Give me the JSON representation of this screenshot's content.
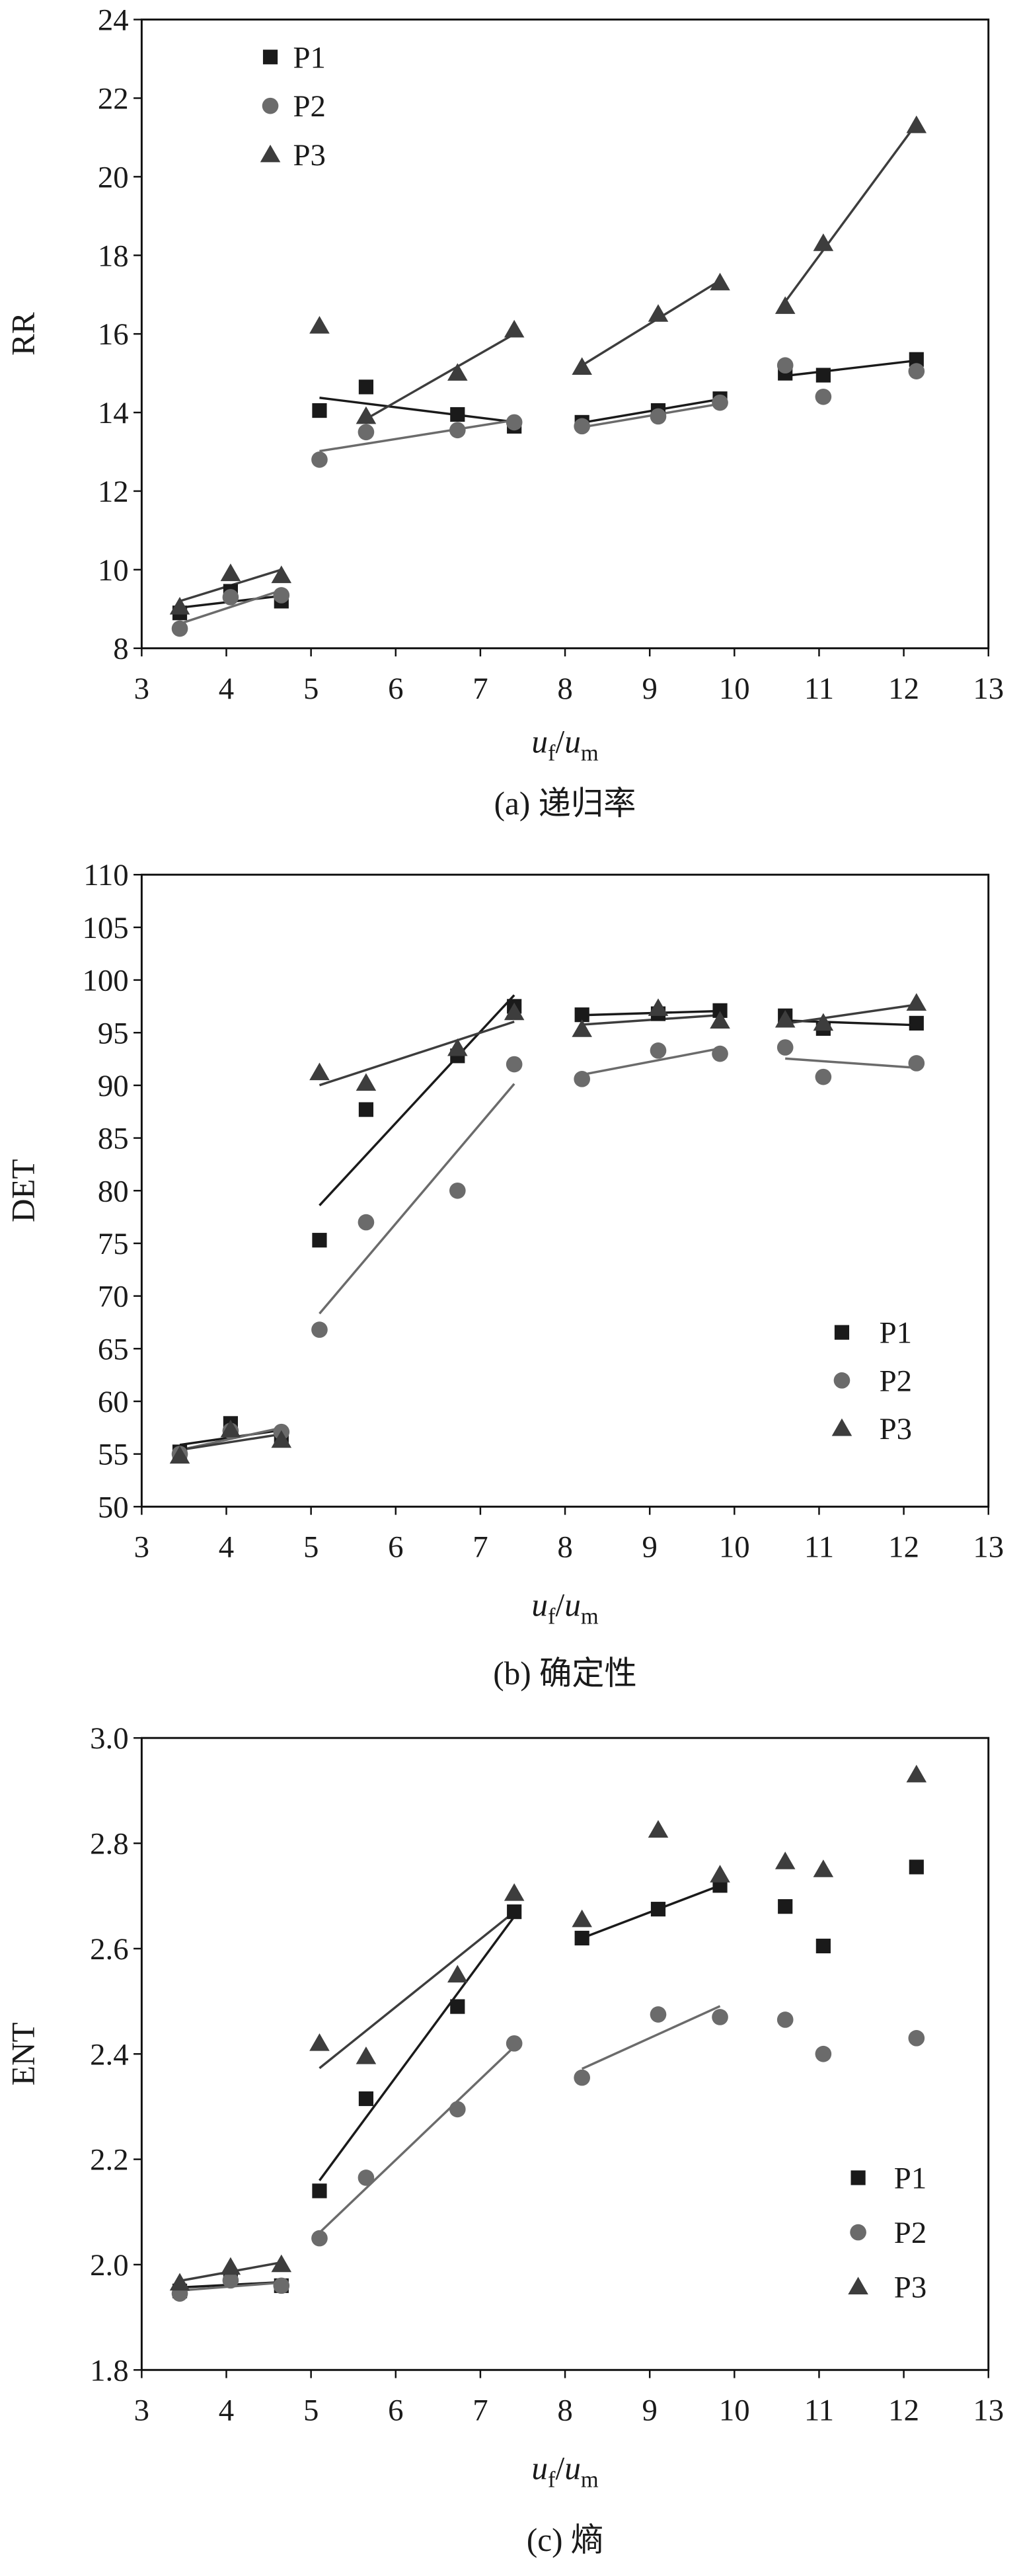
{
  "chart_data": [
    {
      "type": "scatter",
      "caption": "(a) 递归率",
      "ylabel": "RR",
      "xlabel": {
        "u1": "u",
        "sub1": "f",
        "slash": "/",
        "u2": "u",
        "sub2": "m"
      },
      "xlim": [
        3,
        13
      ],
      "ylim": [
        8,
        24
      ],
      "xticks": [
        "3",
        "4",
        "5",
        "6",
        "7",
        "8",
        "9",
        "10",
        "11",
        "12",
        "13"
      ],
      "yticks": [
        "8",
        "10",
        "12",
        "14",
        "16",
        "18",
        "20",
        "22",
        "24"
      ],
      "legend": "top-left",
      "x": [
        3.45,
        4.05,
        4.65,
        5.1,
        5.65,
        6.73,
        7.4,
        8.2,
        9.1,
        9.83,
        10.6,
        11.05,
        12.15
      ],
      "series": [
        {
          "name": "P1",
          "marker": "square",
          "color": "#1a1a1a",
          "values": [
            8.9,
            9.45,
            9.2,
            14.05,
            14.65,
            13.95,
            13.65,
            13.75,
            14.05,
            14.35,
            15.0,
            14.95,
            15.35
          ],
          "trends": [
            [
              0,
              2
            ],
            [
              3,
              6
            ],
            [
              7,
              9
            ],
            [
              10,
              12
            ]
          ]
        },
        {
          "name": "P2",
          "marker": "circle",
          "color": "#6b6b6b",
          "values": [
            8.5,
            9.3,
            9.35,
            12.8,
            13.5,
            13.55,
            13.75,
            13.65,
            13.9,
            14.25,
            15.2,
            14.4,
            15.05
          ],
          "trends": [
            [
              0,
              2
            ],
            [
              3,
              6
            ],
            [
              7,
              9
            ]
          ]
        },
        {
          "name": "P3",
          "marker": "triangle",
          "color": "#3d3d3d",
          "values": [
            9.05,
            9.9,
            9.85,
            16.2,
            13.9,
            15.0,
            16.1,
            15.15,
            16.5,
            17.3,
            16.7,
            18.3,
            21.3
          ],
          "trends": [
            [
              0,
              2
            ],
            [
              4,
              6
            ],
            [
              7,
              9
            ],
            [
              10,
              12
            ]
          ]
        }
      ]
    },
    {
      "type": "scatter",
      "caption": "(b) 确定性",
      "ylabel": "DET",
      "xlabel": {
        "u1": "u",
        "sub1": "f",
        "slash": "/",
        "u2": "u",
        "sub2": "m"
      },
      "xlim": [
        3,
        13
      ],
      "ylim": [
        50,
        110
      ],
      "xticks": [
        "3",
        "4",
        "5",
        "6",
        "7",
        "8",
        "9",
        "10",
        "11",
        "12",
        "13"
      ],
      "yticks": [
        "50",
        "55",
        "60",
        "65",
        "70",
        "75",
        "80",
        "85",
        "90",
        "95",
        "100",
        "105",
        "110"
      ],
      "legend": "bottom-right",
      "x": [
        3.45,
        4.05,
        4.65,
        5.1,
        5.65,
        6.73,
        7.4,
        8.2,
        9.1,
        9.83,
        10.6,
        11.05,
        12.15
      ],
      "series": [
        {
          "name": "P1",
          "marker": "square",
          "color": "#1a1a1a",
          "values": [
            55.2,
            57.9,
            56.6,
            75.3,
            87.7,
            92.8,
            97.5,
            96.7,
            96.8,
            97.1,
            96.6,
            95.4,
            95.9
          ],
          "trends": [
            [
              0,
              2
            ],
            [
              3,
              6
            ],
            [
              7,
              9
            ],
            [
              10,
              12
            ]
          ]
        },
        {
          "name": "P2",
          "marker": "circle",
          "color": "#6b6b6b",
          "values": [
            55.0,
            57.2,
            57.1,
            66.8,
            77.0,
            80.0,
            92.0,
            90.6,
            93.3,
            93.0,
            93.6,
            90.8,
            92.1
          ],
          "trends": [
            [
              0,
              2
            ],
            [
              3,
              6
            ],
            [
              7,
              9
            ],
            [
              10,
              12
            ]
          ]
        },
        {
          "name": "P3",
          "marker": "triangle",
          "color": "#3d3d3d",
          "values": [
            54.8,
            57.3,
            56.3,
            91.2,
            90.2,
            93.5,
            96.9,
            95.3,
            97.3,
            96.1,
            96.2,
            95.9,
            97.8
          ],
          "trends": [
            [
              0,
              2
            ],
            [
              3,
              6
            ],
            [
              7,
              9
            ],
            [
              10,
              12
            ]
          ]
        }
      ]
    },
    {
      "type": "scatter",
      "caption": "(c) 熵",
      "ylabel": "ENT",
      "xlabel": {
        "u1": "u",
        "sub1": "f",
        "slash": "/",
        "u2": "u",
        "sub2": "m"
      },
      "xlim": [
        3,
        13
      ],
      "ylim": [
        1.8,
        3.0
      ],
      "xticks": [
        "3",
        "4",
        "5",
        "6",
        "7",
        "8",
        "9",
        "10",
        "11",
        "12",
        "13"
      ],
      "yticks": [
        "1.8",
        "2.0",
        "2.2",
        "2.4",
        "2.6",
        "2.8",
        "3.0"
      ],
      "legend": "bottom-right",
      "x": [
        3.45,
        4.05,
        4.65,
        5.1,
        5.65,
        6.73,
        7.4,
        8.2,
        9.1,
        9.83,
        10.6,
        11.05,
        12.15
      ],
      "series": [
        {
          "name": "P1",
          "marker": "square",
          "color": "#1a1a1a",
          "values": [
            1.95,
            1.975,
            1.96,
            2.14,
            2.315,
            2.49,
            2.67,
            2.62,
            2.675,
            2.72,
            2.68,
            2.605,
            2.755
          ],
          "trends": [
            [
              0,
              2
            ],
            [
              3,
              6
            ],
            [
              7,
              9
            ]
          ]
        },
        {
          "name": "P2",
          "marker": "circle",
          "color": "#6b6b6b",
          "values": [
            1.945,
            1.97,
            1.96,
            2.05,
            2.165,
            2.295,
            2.42,
            2.355,
            2.475,
            2.47,
            2.465,
            2.4,
            2.43
          ],
          "trends": [
            [
              0,
              2
            ],
            [
              3,
              6
            ],
            [
              7,
              9
            ]
          ]
        },
        {
          "name": "P3",
          "marker": "triangle",
          "color": "#3d3d3d",
          "values": [
            1.965,
            1.995,
            2.0,
            2.42,
            2.395,
            2.55,
            2.705,
            2.655,
            2.825,
            2.74,
            2.765,
            2.75,
            2.93
          ],
          "trends": [
            [
              0,
              2
            ],
            [
              3,
              6
            ]
          ]
        }
      ]
    }
  ]
}
